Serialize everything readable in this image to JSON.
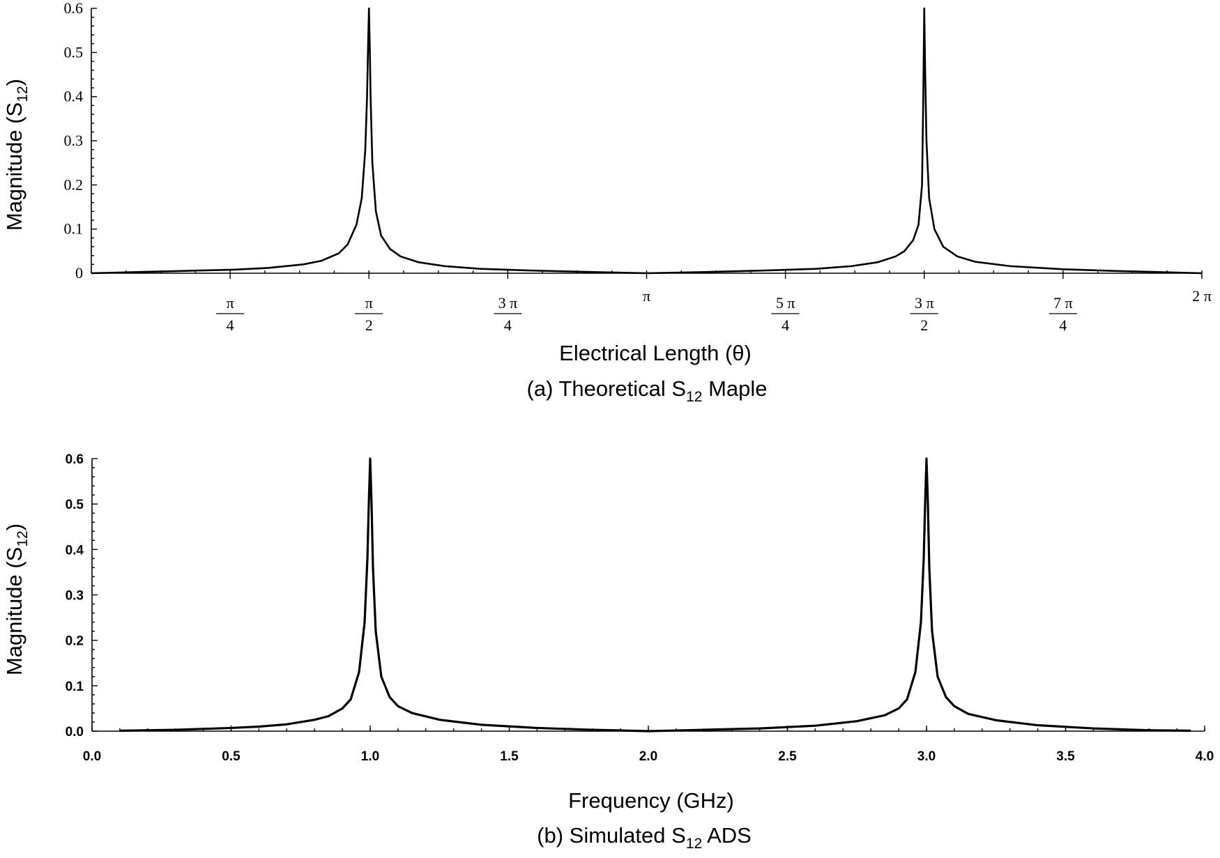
{
  "chart_data": [
    {
      "type": "line",
      "xlabel": "Electrical Length (θ)",
      "ylabel": {
        "main": "Magnitude (S",
        "sub": "12",
        "close": ")"
      },
      "caption": {
        "pre": "(a) Theoretical S",
        "sub": "12",
        "post": " Maple"
      },
      "xlim": [
        0,
        6.2832
      ],
      "ylim": [
        0,
        0.6
      ],
      "x_ticks": [
        {
          "value": 0.7854,
          "num": "π",
          "den": "4"
        },
        {
          "value": 1.5708,
          "num": "π",
          "den": "2"
        },
        {
          "value": 2.3562,
          "num": "3 π",
          "den": "4"
        },
        {
          "value": 3.1416,
          "label": "π"
        },
        {
          "value": 3.927,
          "num": "5 π",
          "den": "4"
        },
        {
          "value": 4.7124,
          "num": "3 π",
          "den": "2"
        },
        {
          "value": 5.4978,
          "num": "7 π",
          "den": "4"
        },
        {
          "value": 6.2832,
          "label": "2 π"
        }
      ],
      "y_ticks": [
        {
          "value": 0,
          "label": "0"
        },
        {
          "value": 0.1,
          "label": "0.1"
        },
        {
          "value": 0.2,
          "label": "0.2"
        },
        {
          "value": 0.3,
          "label": "0.3"
        },
        {
          "value": 0.4,
          "label": "0.4"
        },
        {
          "value": 0.5,
          "label": "0.5"
        },
        {
          "value": 0.6,
          "label": "0.6"
        }
      ],
      "series": [
        {
          "x": [
            0,
            0.3,
            0.6,
            0.8,
            1.0,
            1.2,
            1.3,
            1.4,
            1.45,
            1.5,
            1.53,
            1.55,
            1.56,
            1.565,
            1.5708,
            1.576,
            1.58,
            1.59,
            1.61,
            1.64,
            1.69,
            1.75,
            1.85,
            2.0,
            2.2,
            2.5,
            2.8,
            3.1416,
            3.5,
            3.8,
            4.1,
            4.3,
            4.45,
            4.55,
            4.6,
            4.65,
            4.68,
            4.7,
            4.707,
            4.7124,
            4.718,
            4.725,
            4.74,
            4.77,
            4.82,
            4.9,
            5.0,
            5.2,
            5.5,
            5.8,
            6.0,
            6.2832
          ],
          "y": [
            0,
            0.003,
            0.006,
            0.008,
            0.012,
            0.02,
            0.028,
            0.045,
            0.065,
            0.11,
            0.17,
            0.28,
            0.4,
            0.5,
            0.6,
            0.5,
            0.4,
            0.25,
            0.14,
            0.085,
            0.055,
            0.038,
            0.025,
            0.016,
            0.01,
            0.006,
            0.003,
            0,
            0.003,
            0.006,
            0.01,
            0.016,
            0.025,
            0.038,
            0.05,
            0.075,
            0.11,
            0.2,
            0.4,
            0.6,
            0.45,
            0.3,
            0.17,
            0.1,
            0.06,
            0.038,
            0.026,
            0.016,
            0.009,
            0.005,
            0.003,
            0
          ]
        }
      ]
    },
    {
      "type": "line",
      "xlabel": "Frequency (GHz)",
      "ylabel": {
        "main": "Magnitude (S",
        "sub": "12",
        "close": ")"
      },
      "caption": {
        "pre": "(b) Simulated S",
        "sub": "12",
        "post": " ADS"
      },
      "xlim": [
        0,
        4
      ],
      "ylim": [
        0,
        0.6
      ],
      "x_ticks": [
        {
          "value": 0,
          "label": "0.0"
        },
        {
          "value": 0.5,
          "label": "0.5"
        },
        {
          "value": 1.0,
          "label": "1.0"
        },
        {
          "value": 1.5,
          "label": "1.5"
        },
        {
          "value": 2.0,
          "label": "2.0"
        },
        {
          "value": 2.5,
          "label": "2.5"
        },
        {
          "value": 3.0,
          "label": "3.0"
        },
        {
          "value": 3.5,
          "label": "3.5"
        },
        {
          "value": 4.0,
          "label": "4.0"
        }
      ],
      "y_ticks": [
        {
          "value": 0,
          "label": "0.0"
        },
        {
          "value": 0.1,
          "label": "0.1"
        },
        {
          "value": 0.2,
          "label": "0.2"
        },
        {
          "value": 0.3,
          "label": "0.3"
        },
        {
          "value": 0.4,
          "label": "0.4"
        },
        {
          "value": 0.5,
          "label": "0.5"
        },
        {
          "value": 0.6,
          "label": "0.6"
        }
      ],
      "series": [
        {
          "x": [
            0.1,
            0.3,
            0.5,
            0.6,
            0.7,
            0.8,
            0.85,
            0.9,
            0.93,
            0.96,
            0.98,
            0.99,
            0.995,
            1.0,
            1.005,
            1.01,
            1.02,
            1.04,
            1.07,
            1.1,
            1.15,
            1.25,
            1.4,
            1.6,
            1.8,
            2.0,
            2.2,
            2.4,
            2.6,
            2.75,
            2.85,
            2.9,
            2.93,
            2.96,
            2.98,
            2.99,
            2.995,
            3.0,
            3.005,
            3.01,
            3.02,
            3.04,
            3.07,
            3.1,
            3.15,
            3.25,
            3.4,
            3.6,
            3.8,
            3.95
          ],
          "y": [
            0.001,
            0.003,
            0.007,
            0.01,
            0.015,
            0.025,
            0.033,
            0.05,
            0.07,
            0.13,
            0.24,
            0.38,
            0.5,
            0.6,
            0.5,
            0.36,
            0.22,
            0.12,
            0.075,
            0.055,
            0.04,
            0.025,
            0.014,
            0.007,
            0.003,
            0,
            0.003,
            0.006,
            0.012,
            0.022,
            0.035,
            0.05,
            0.07,
            0.13,
            0.24,
            0.38,
            0.5,
            0.6,
            0.5,
            0.36,
            0.22,
            0.12,
            0.075,
            0.055,
            0.038,
            0.024,
            0.013,
            0.006,
            0.002,
            0.001
          ]
        }
      ]
    }
  ]
}
